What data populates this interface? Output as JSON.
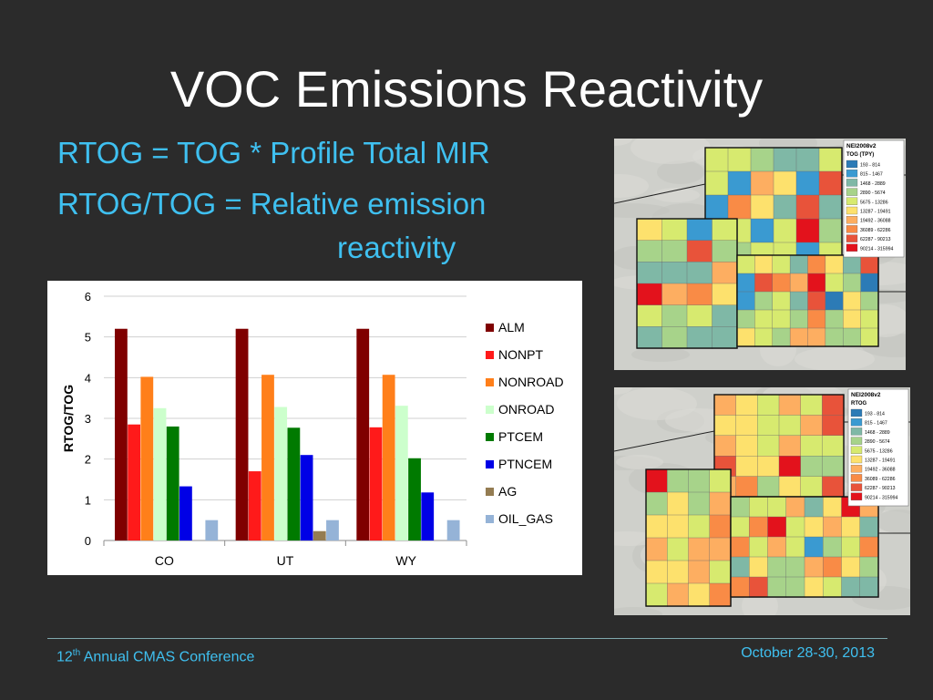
{
  "slide": {
    "title": "VOC Emissions Reactivity",
    "bullets": [
      "RTOG = TOG * Profile Total MIR",
      "RTOG/TOG = Relative emission",
      "reactivity"
    ],
    "footer": {
      "left_prefix": "12",
      "left_sup": "th",
      "left_text": " Annual CMAS Conference",
      "right": "October 28-30, 2013"
    }
  },
  "chart_data": {
    "type": "bar",
    "title": "",
    "xlabel": "",
    "ylabel": "RTOG/TOG",
    "ylim": [
      0,
      6
    ],
    "yticks": [
      "0",
      "1",
      "2",
      "3",
      "4",
      "5",
      "6"
    ],
    "categories": [
      "CO",
      "UT",
      "WY"
    ],
    "grid": true,
    "legend": "right",
    "series": [
      {
        "name": "ALM",
        "color": "#7f0000",
        "values": [
          5.2,
          5.2,
          5.2
        ]
      },
      {
        "name": "NONPT",
        "color": "#ff1a1a",
        "values": [
          2.85,
          1.7,
          2.78
        ]
      },
      {
        "name": "NONROAD",
        "color": "#ff7f1a",
        "values": [
          4.02,
          4.07,
          4.07
        ]
      },
      {
        "name": "ONROAD",
        "color": "#ccffcc",
        "values": [
          3.25,
          3.28,
          3.31
        ]
      },
      {
        "name": "PTCEM",
        "color": "#007a00",
        "values": [
          2.8,
          2.77,
          2.02
        ]
      },
      {
        "name": "PTNCEM",
        "color": "#0000e6",
        "values": [
          1.33,
          2.1,
          1.18
        ]
      },
      {
        "name": "AG",
        "color": "#947c52",
        "values": [
          0,
          0.23,
          0
        ]
      },
      {
        "name": "OIL_GAS",
        "color": "#95b3d7",
        "values": [
          0.5,
          0.5,
          0.5
        ]
      }
    ]
  },
  "maps": [
    {
      "title": "NEI2008v2",
      "subtitle": "TOG (TPY)",
      "legend": [
        "193 - 814",
        "815 - 1467",
        "1468 - 2889",
        "2890 - 5674",
        "5675 - 13286",
        "13287 - 19491",
        "19492 - 36088",
        "36089 - 62286",
        "62287 - 90213",
        "90214 - 315994"
      ]
    },
    {
      "title": "NEI2008v2",
      "subtitle": "RTOG",
      "legend": [
        "193 - 814",
        "815 - 1467",
        "1468 - 2889",
        "2890 - 5674",
        "5675 - 13286",
        "13287 - 19491",
        "19492 - 36088",
        "36089 - 62286",
        "62287 - 90213",
        "90214 - 315994"
      ]
    }
  ],
  "colors": {
    "map_scale": [
      "#2c7bb6",
      "#3a9ad1",
      "#7fb8a6",
      "#a7d38a",
      "#d7ea6f",
      "#fde16d",
      "#fdae61",
      "#f98b46",
      "#e8533a",
      "#e3121c"
    ]
  }
}
